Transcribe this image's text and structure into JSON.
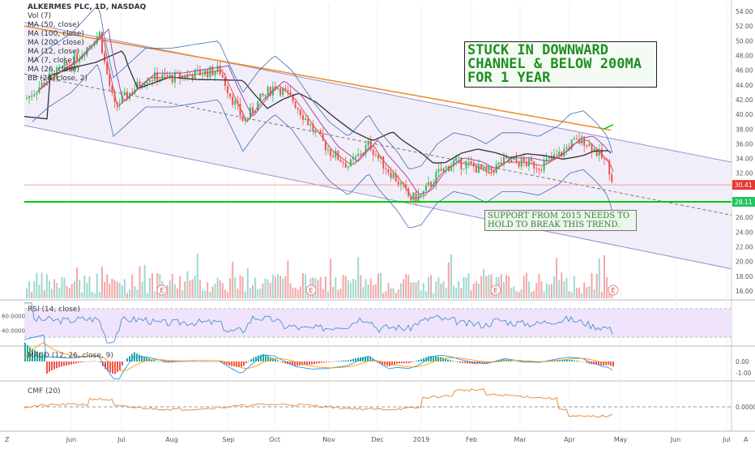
{
  "legend": {
    "title": "ALKERMES PLC, 1D, NASDAQ",
    "items": [
      "Vol (7)",
      "MA (50, close)",
      "MA (100, close)",
      "MA (200, close)",
      "MA (12, close)",
      "MA (7, close)",
      "MA (26, close)",
      "BB (20, close, 2)"
    ]
  },
  "annotations": {
    "main_lines": [
      "STUCK IN DOWNWARD",
      "CHANNEL & BELOW 200MA",
      "FOR 1 YEAR"
    ],
    "support_lines": [
      "SUPPORT FROM 2015 NEEDS TO",
      "HOLD TO BREAK THIS TREND."
    ]
  },
  "earnings_marker": "E",
  "panes": {
    "rsi_label": "RSI (14, close)",
    "macd_label": "MACD (12, 26, close, 9)",
    "cmf_label": "CMF (20)"
  },
  "bottom_bar": {
    "left": "Z",
    "right": "A"
  },
  "colors": {
    "up": "#26a69a",
    "down": "#ef5350",
    "support": "#00cc00",
    "ma200": "#f08a24",
    "channel": "#9b8fd1"
  },
  "chart_data": {
    "type": "candlestick",
    "symbol": "ALKERMES PLC",
    "timeframe": "1D",
    "exchange": "NASDAQ",
    "x_tick_labels": [
      "Jun",
      "Jul",
      "Aug",
      "Sep",
      "Oct",
      "Nov",
      "Dec",
      "2019",
      "Feb",
      "Mar",
      "Apr",
      "May",
      "Jun",
      "Jul"
    ],
    "y_tick_labels": [
      "54.00",
      "52.00",
      "50.00",
      "48.00",
      "46.00",
      "44.00",
      "42.00",
      "40.00",
      "38.00",
      "36.00",
      "34.00",
      "32.00",
      "28.00",
      "26.00",
      "24.00",
      "22.00",
      "20.00",
      "18.00",
      "16.00"
    ],
    "ylim": [
      15,
      55
    ],
    "price_close_approx": [
      {
        "month": "Jun",
        "value": 48.0
      },
      {
        "month": "Jul",
        "value": 45.0
      },
      {
        "month": "Aug",
        "value": 46.2
      },
      {
        "month": "Sep",
        "value": 40.5
      },
      {
        "month": "Oct",
        "value": 43.5
      },
      {
        "month": "Nov",
        "value": 34.0
      },
      {
        "month": "Dec",
        "value": 32.0
      },
      {
        "month": "2019",
        "value": 29.0
      },
      {
        "month": "Feb",
        "value": 33.0
      },
      {
        "month": "Mar",
        "value": 33.5
      },
      {
        "month": "Apr",
        "value": 35.5
      },
      {
        "month": "end",
        "value": 30.41
      }
    ],
    "last_price_label": "30.41",
    "support_price_label": "28.11",
    "support_level": 28.11,
    "rsi": {
      "y_tick_labels": [
        "60.0000",
        "40.0000"
      ]
    },
    "macd": {
      "y_tick_labels": [
        "0.00",
        "-1.00"
      ]
    },
    "cmf": {
      "y_tick_labels": [
        "0.0000"
      ]
    }
  }
}
